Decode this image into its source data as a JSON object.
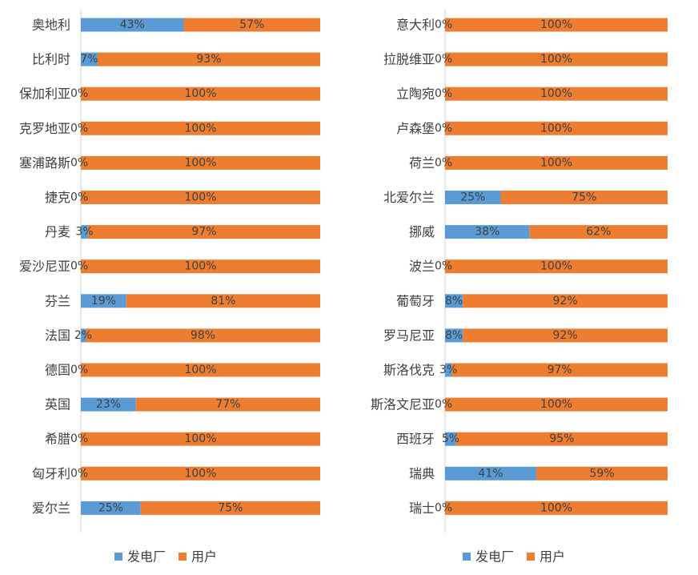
{
  "colors": {
    "power_plant": "#5b9bd5",
    "user": "#ed7d31"
  },
  "chart_data": [
    {
      "type": "bar",
      "orientation": "horizontal",
      "stacked": "percent",
      "categories": [
        "奥地利",
        "比利时",
        "保加利亚",
        "克罗地亚",
        "塞浦路斯",
        "捷克",
        "丹麦",
        "爱沙尼亚",
        "芬兰",
        "法国",
        "德国",
        "英国",
        "希腊",
        "匈牙利",
        "爱尔兰"
      ],
      "series": [
        {
          "name": "发电厂",
          "values": [
            43,
            7,
            0,
            0,
            0,
            0,
            3,
            0,
            19,
            2,
            0,
            23,
            0,
            0,
            25
          ]
        },
        {
          "name": "用户",
          "values": [
            57,
            93,
            100,
            100,
            100,
            100,
            97,
            100,
            81,
            98,
            100,
            77,
            100,
            100,
            75
          ]
        }
      ],
      "value_labels": {
        "power_plant": [
          "43%",
          "7%",
          "0%",
          "0%",
          "0%",
          "0%",
          "3%",
          "0%",
          "19%",
          "2%",
          "0%",
          "23%",
          "0%",
          "0%",
          "25%"
        ],
        "user": [
          "57%",
          "93%",
          "100%",
          "100%",
          "100%",
          "100%",
          "97%",
          "100%",
          "81%",
          "98%",
          "100%",
          "77%",
          "100%",
          "100%",
          "75%"
        ]
      },
      "legend": {
        "position": "bottom",
        "items": [
          "发电厂",
          "用户"
        ]
      },
      "xlim": [
        0,
        100
      ],
      "grid": false
    },
    {
      "type": "bar",
      "orientation": "horizontal",
      "stacked": "percent",
      "categories": [
        "意大利",
        "拉脱维亚",
        "立陶宛",
        "卢森堡",
        "荷兰",
        "北爱尔兰",
        "挪威",
        "波兰",
        "葡萄牙",
        "罗马尼亚",
        "斯洛伐克",
        "斯洛文尼亚",
        "西班牙",
        "瑞典",
        "瑞士"
      ],
      "series": [
        {
          "name": "发电厂",
          "values": [
            0,
            0,
            0,
            0,
            0,
            25,
            38,
            0,
            8,
            8,
            3,
            0,
            5,
            41,
            0
          ]
        },
        {
          "name": "用户",
          "values": [
            100,
            100,
            100,
            100,
            100,
            75,
            62,
            100,
            92,
            92,
            97,
            100,
            95,
            59,
            100
          ]
        }
      ],
      "value_labels": {
        "power_plant": [
          "0%",
          "0%",
          "0%",
          "0%",
          "0%",
          "25%",
          "38%",
          "0%",
          "8%",
          "8%",
          "3%",
          "0%",
          "5%",
          "41%",
          "0%"
        ],
        "user": [
          "100%",
          "100%",
          "100%",
          "100%",
          "100%",
          "75%",
          "62%",
          "100%",
          "92%",
          "92%",
          "97%",
          "100%",
          "95%",
          "59%",
          "100%"
        ]
      },
      "legend": {
        "position": "bottom",
        "items": [
          "发电厂",
          "用户"
        ]
      },
      "xlim": [
        0,
        100
      ],
      "grid": false
    }
  ]
}
